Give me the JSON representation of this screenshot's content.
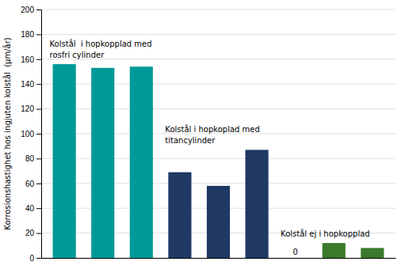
{
  "chart_data": {
    "type": "bar",
    "ylabel": "Korrosionshastighet hos ingjuten kolstål  (μm/år)",
    "categories": [
      null,
      null,
      null,
      null,
      null,
      null,
      null,
      null,
      null
    ],
    "values": [
      156,
      153,
      154,
      69,
      58,
      87,
      0,
      12,
      8
    ],
    "value_labels": [
      null,
      null,
      null,
      null,
      null,
      null,
      "0",
      null,
      null
    ],
    "colors": [
      "#009999",
      "#009999",
      "#009999",
      "#1F3864",
      "#1F3864",
      "#1F3864",
      "#1F3864",
      "#3A7A2A",
      "#3A7A2A"
    ],
    "annotations": [
      "Kolstål  i hopkopplad med\nrosfri cylinder",
      "Kolstål i hopkoplad med\ntitancylinder",
      "Kolstål ej i hopkopplad"
    ],
    "ylim": [
      0,
      200
    ],
    "yticks": [
      0,
      20,
      40,
      60,
      80,
      100,
      120,
      140,
      160,
      180,
      200
    ],
    "grid": true,
    "tick_labels": "y"
  }
}
